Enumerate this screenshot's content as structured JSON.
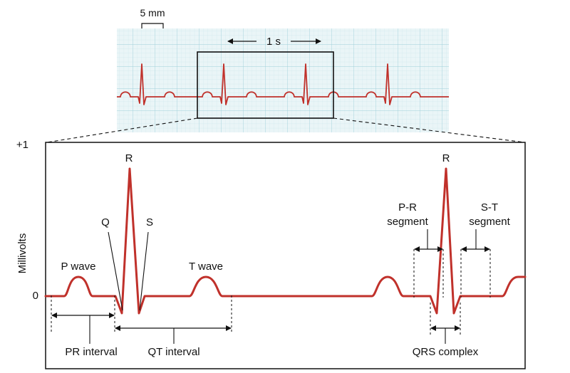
{
  "strip": {
    "scale_label": "5 mm",
    "time_label": "1 s"
  },
  "main": {
    "y_axis_label": "Millivolts",
    "y_top_label": "+1",
    "y_zero_label": "0",
    "labels": {
      "r_left": "R",
      "r_right": "R",
      "q": "Q",
      "s": "S",
      "p_wave": "P wave",
      "t_wave": "T wave",
      "pr_segment_line1": "P-R",
      "pr_segment_line2": "segment",
      "st_segment_line1": "S-T",
      "st_segment_line2": "segment",
      "pr_interval": "PR interval",
      "qt_interval": "QT interval",
      "qrs_complex": "QRS complex"
    }
  },
  "colors": {
    "trace": "#c0312b",
    "grid_minor": "#cfe7ec",
    "grid_major": "#9fd0da",
    "grid_bg": "#eaf5f7",
    "ink": "#111111"
  }
}
